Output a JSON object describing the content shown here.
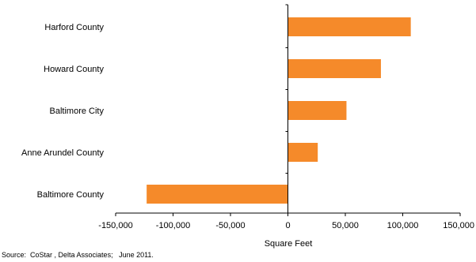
{
  "source": "Source:  CoStar , Delta Associates;   June 2011.",
  "chart_data": {
    "type": "bar",
    "orientation": "horizontal",
    "categories": [
      "Harford County",
      "Howard County",
      "Baltimore City",
      "Anne Arundel County",
      "Baltimore County"
    ],
    "values": [
      107000,
      81000,
      51000,
      26000,
      -123000
    ],
    "xlabel": "Square Feet",
    "ylabel": "",
    "xlim": [
      -150000,
      150000
    ],
    "xticks": [
      -150000,
      -100000,
      -50000,
      0,
      50000,
      100000,
      150000
    ],
    "xtick_labels": [
      "-150,000",
      "-100,000",
      "-50,000",
      "0",
      "50,000",
      "100,000",
      "150,000"
    ],
    "grid": false,
    "legend": "none",
    "bar_color": "#f58a2a"
  }
}
